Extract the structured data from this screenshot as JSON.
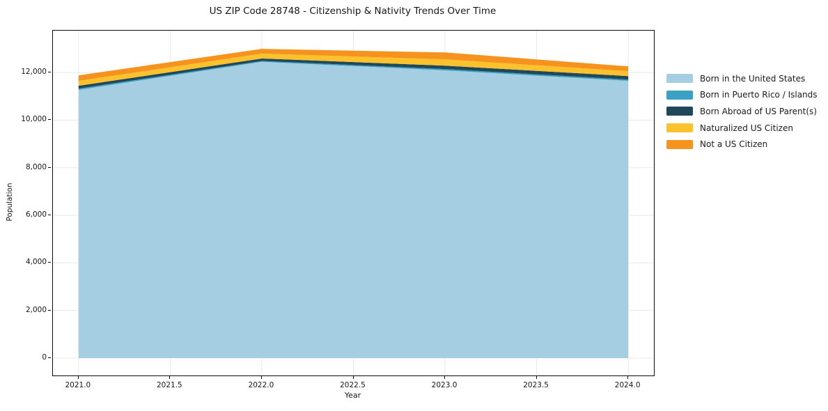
{
  "title": "US ZIP Code 28748 - Citizenship & Nativity Trends Over Time",
  "chart_data": {
    "type": "area",
    "stacked": true,
    "title": "US ZIP Code 28748 - Citizenship & Nativity Trends Over Time",
    "xlabel": "Year",
    "ylabel": "Population",
    "x": [
      2021,
      2022,
      2023,
      2024
    ],
    "series": [
      {
        "name": "Born in the United States",
        "color": "#a6cee3",
        "values": [
          11270,
          12450,
          12090,
          11650
        ]
      },
      {
        "name": "Born in Puerto Rico / Islands",
        "color": "#3ca0c2",
        "values": [
          55,
          35,
          55,
          55
        ]
      },
      {
        "name": "Born Abroad of US Parent(s)",
        "color": "#20485a",
        "values": [
          120,
          105,
          145,
          145
        ]
      },
      {
        "name": "Naturalized US Citizen",
        "color": "#fcc22e",
        "values": [
          205,
          205,
          265,
          205
        ]
      },
      {
        "name": "Not a US Citizen",
        "color": "#f6921e",
        "values": [
          230,
          200,
          290,
          205
        ]
      }
    ],
    "xlim": [
      2020.86,
      2024.14
    ],
    "ylim": [
      -730,
      13760
    ],
    "xticks": {
      "values": [
        2021.0,
        2021.5,
        2022.0,
        2022.5,
        2023.0,
        2023.5,
        2024.0
      ],
      "labels": [
        "2021.0",
        "2021.5",
        "2022.0",
        "2022.5",
        "2023.0",
        "2023.5",
        "2024.0"
      ]
    },
    "yticks": {
      "values": [
        0,
        2000,
        4000,
        6000,
        8000,
        10000,
        12000
      ],
      "labels": [
        "0",
        "2,000",
        "4,000",
        "6,000",
        "8,000",
        "10,000",
        "12,000"
      ]
    },
    "grid": true,
    "grid_color": "#e8e8e8",
    "legend_position": "right"
  }
}
